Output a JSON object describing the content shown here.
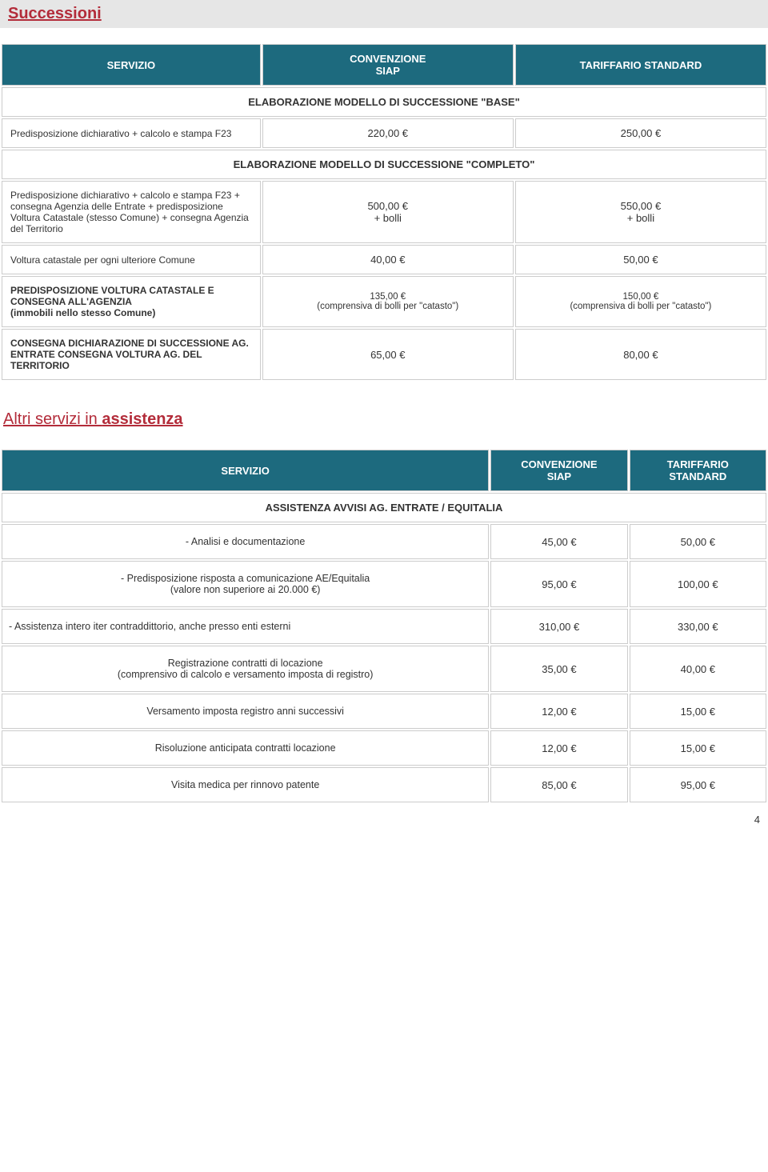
{
  "pageNumber": "4",
  "section1": {
    "title": "Successioni",
    "header": {
      "c1": "SERVIZIO",
      "c2": "CONVENZIONE\nSIAP",
      "c3": "TARIFFARIO STANDARD"
    },
    "sub1": "ELABORAZIONE MODELLO DI SUCCESSIONE \"BASE\"",
    "row1": {
      "label": "Predisposizione dichiarativo + calcolo e stampa F23",
      "v1": "220,00 €",
      "v2": "250,00 €"
    },
    "sub2": "ELABORAZIONE MODELLO DI SUCCESSIONE \"COMPLETO\"",
    "row2": {
      "label": "Predisposizione dichiarativo + calcolo e stampa F23 + consegna Agenzia delle Entrate + predisposizione Voltura Catastale (stesso Comune) + consegna Agenzia del Territorio",
      "v1": "500,00 €\n+ bolli",
      "v2": "550,00 €\n+ bolli"
    },
    "row3": {
      "label": "Voltura catastale per ogni ulteriore Comune",
      "v1": "40,00 €",
      "v2": "50,00 €"
    },
    "row4": {
      "label": "PREDISPOSIZIONE VOLTURA CATASTALE E CONSEGNA ALL'AGENZIA\n(immobili nello stesso Comune)",
      "v1": "135,00 €\n(comprensiva di bolli per \"catasto\")",
      "v2": "150,00 €\n(comprensiva di bolli per \"catasto\")"
    },
    "row5": {
      "label": "CONSEGNA DICHIARAZIONE DI SUCCESSIONE AG. ENTRATE CONSEGNA VOLTURA AG. DEL TERRITORIO",
      "v1": "65,00 €",
      "v2": "80,00 €"
    }
  },
  "section2": {
    "title": "Altri servizi in assistenza",
    "header": {
      "c1": "SERVIZIO",
      "c2": "CONVENZIONE\nSIAP",
      "c3": "TARIFFARIO\nSTANDARD"
    },
    "sub1": "ASSISTENZA AVVISI AG. ENTRATE / EQUITALIA",
    "rows": [
      {
        "label": "- Analisi e documentazione",
        "v1": "45,00 €",
        "v2": "50,00 €",
        "align": "center"
      },
      {
        "label": "- Predisposizione risposta a comunicazione AE/Equitalia\n(valore non superiore ai 20.000 €)",
        "v1": "95,00 €",
        "v2": "100,00 €",
        "align": "center"
      },
      {
        "label": "- Assistenza intero iter contraddittorio, anche presso enti esterni",
        "v1": "310,00 €",
        "v2": "330,00 €",
        "align": "left"
      },
      {
        "label": "Registrazione contratti di locazione\n(comprensivo di calcolo e versamento imposta di registro)",
        "v1": "35,00 €",
        "v2": "40,00 €",
        "align": "center"
      },
      {
        "label": "Versamento imposta registro anni successivi",
        "v1": "12,00 €",
        "v2": "15,00 €",
        "align": "center"
      },
      {
        "label": "Risoluzione anticipata contratti locazione",
        "v1": "12,00 €",
        "v2": "15,00 €",
        "align": "center"
      },
      {
        "label": "Visita medica per rinnovo patente",
        "v1": "85,00 €",
        "v2": "95,00 €",
        "align": "center"
      }
    ]
  }
}
